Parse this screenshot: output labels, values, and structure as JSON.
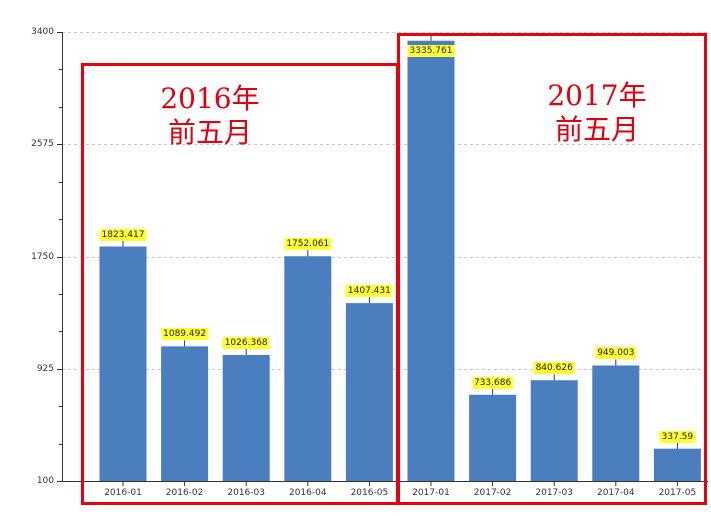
{
  "chart_data": {
    "type": "bar",
    "title": "",
    "xlabel": "",
    "ylabel": "",
    "categories": [
      "2016-01",
      "2016-02",
      "2016-03",
      "2016-04",
      "2016-05",
      "2017-01",
      "2017-02",
      "2017-03",
      "2017-04",
      "2017-05"
    ],
    "values": [
      1823.417,
      1089.492,
      1026.368,
      1752.061,
      1407.431,
      3335.761,
      733.686,
      840.626,
      949.003,
      337.59
    ],
    "value_labels": [
      "1823.417",
      "1089.492",
      "1026.368",
      "1752.061",
      "1407.431",
      "3335.761",
      "733.686",
      "840.626",
      "949.003",
      "337.59"
    ],
    "ylim": [
      100,
      3400
    ],
    "yticks": [
      100,
      925,
      1750,
      2575,
      3400
    ],
    "ytick_labels": [
      "100",
      "925",
      "1750",
      "2575",
      "3400"
    ],
    "grid": true,
    "bar_color": "#4a7ebf",
    "label_bg_color": "#ffff33",
    "annotations": [
      {
        "text_line1": "2016年",
        "text_line2": "前五月",
        "color": "#e00010",
        "covers": [
          "2016-01",
          "2016-02",
          "2016-03",
          "2016-04",
          "2016-05"
        ]
      },
      {
        "text_line1": "2017年",
        "text_line2": "前五月",
        "color": "#e00010",
        "covers": [
          "2017-01",
          "2017-02",
          "2017-03",
          "2017-04",
          "2017-05"
        ]
      }
    ]
  }
}
